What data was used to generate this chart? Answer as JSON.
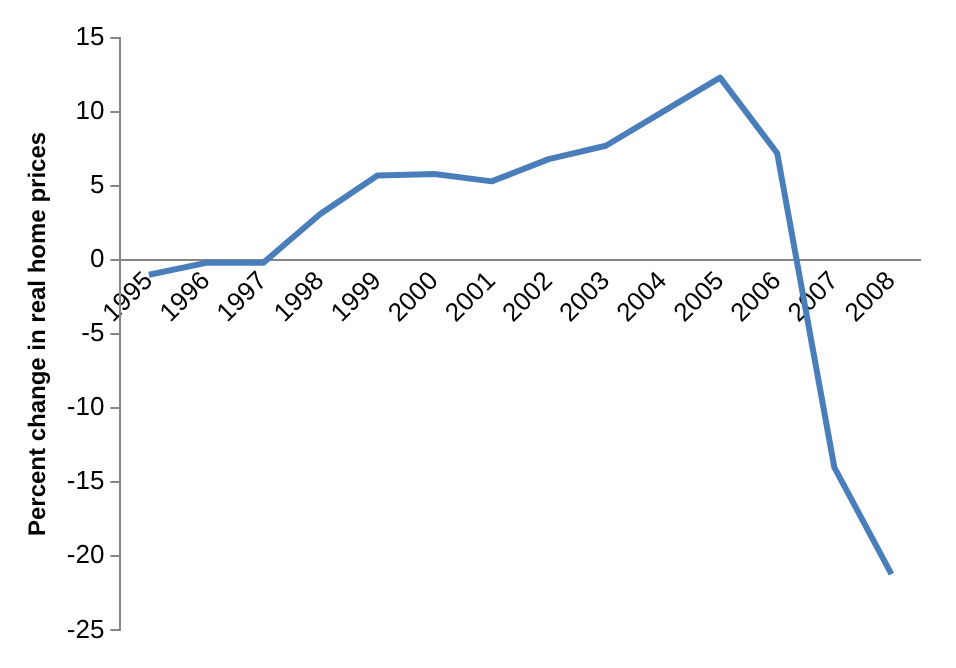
{
  "chart_data": {
    "type": "line",
    "ylabel": "Percent change in real home prices",
    "categories": [
      "1995",
      "1996",
      "1997",
      "1998",
      "1999",
      "2000",
      "2001",
      "2002",
      "2003",
      "2004",
      "2005",
      "2006",
      "2007",
      "2008"
    ],
    "series": [
      {
        "color": "#4a7ebb",
        "values": [
          -1.0,
          -0.2,
          -0.2,
          3.1,
          5.7,
          5.8,
          5.3,
          6.8,
          7.7,
          10.0,
          12.3,
          7.2,
          -14.0,
          -21.2
        ]
      }
    ],
    "ylim": [
      -25,
      15
    ],
    "yticks": [
      -25,
      -20,
      -15,
      -10,
      -5,
      0,
      5,
      10,
      15
    ],
    "grid": false,
    "legend": false,
    "marker": "none",
    "line_style": "solid"
  }
}
